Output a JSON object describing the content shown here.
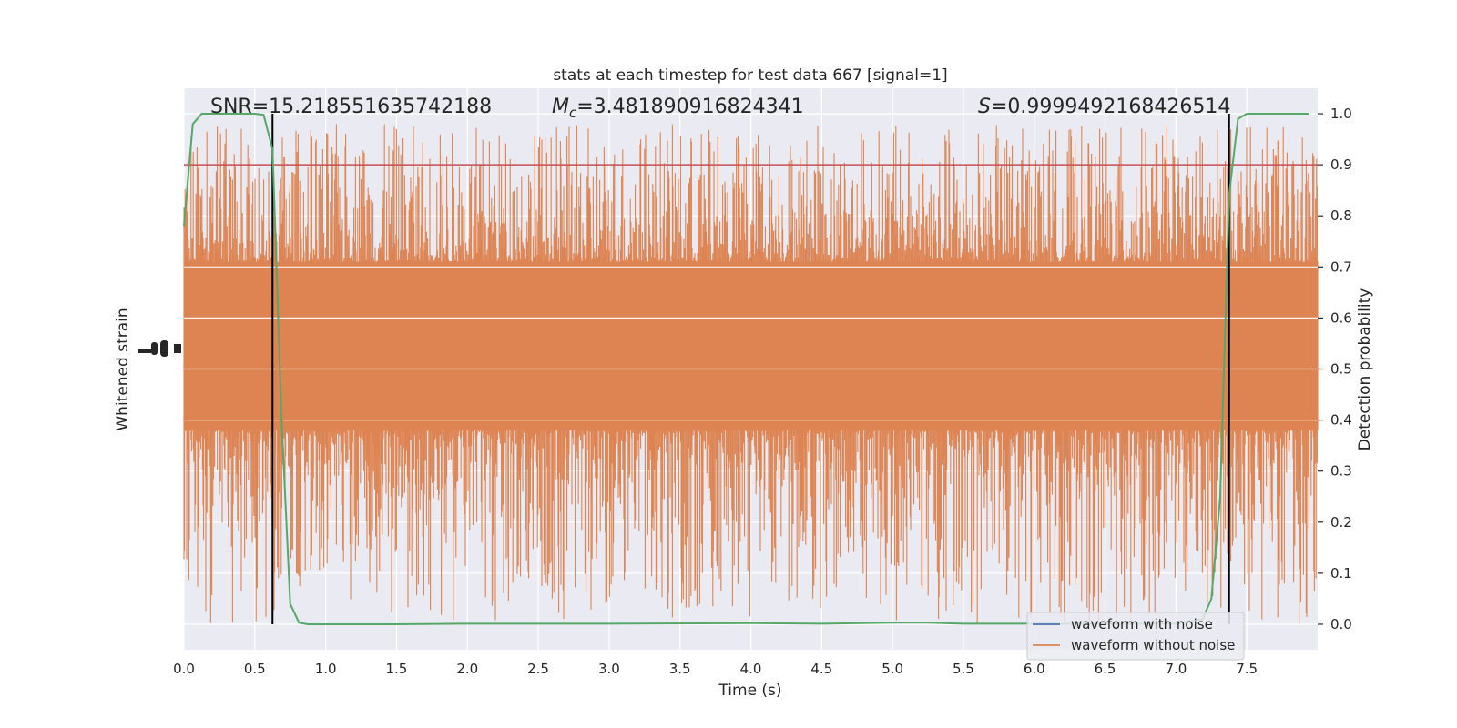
{
  "chart_data": {
    "type": "line",
    "title": "stats at each timestep for test data 667 [signal=1]",
    "xlabel": "Time (s)",
    "ylabel_left": "Whitened strain",
    "ylabel_right": "Detection probability",
    "xlim": [
      0.0,
      8.0
    ],
    "ylim_right": [
      -0.05,
      1.05
    ],
    "x_ticks": [
      "0.0",
      "0.5",
      "1.0",
      "1.5",
      "2.0",
      "2.5",
      "3.0",
      "3.5",
      "4.0",
      "4.5",
      "5.0",
      "5.5",
      "6.0",
      "6.5",
      "7.0",
      "7.5"
    ],
    "y_ticks_right": [
      "0.0",
      "0.1",
      "0.2",
      "0.3",
      "0.4",
      "0.5",
      "0.6",
      "0.7",
      "0.8",
      "0.9",
      "1.0"
    ],
    "grid": true,
    "annotations": {
      "snr": "SNR=15.218551635742188",
      "mc_symbol": "M",
      "mc_sub": "c",
      "mc_value": "=3.481890916824341",
      "s_symbol": "S",
      "s_value": "=0.9999492168426514"
    },
    "threshold": {
      "y": 0.9,
      "color": "#c44e52"
    },
    "vertical_markers_x": [
      0.625,
      7.375
    ],
    "series": [
      {
        "name": "waveform with noise",
        "color": "#4c72b0",
        "band_center": 0.545,
        "band_core_halfwidth": 0.165,
        "spike_max": 0.98,
        "spike_min": 0.0
      },
      {
        "name": "waveform without noise",
        "color": "#dd8452"
      },
      {
        "color": "#55a868",
        "x": [
          0.0,
          0.0625,
          0.125,
          0.25,
          0.375,
          0.5,
          0.5625,
          0.625,
          0.6875,
          0.75,
          0.8125,
          0.875,
          1.0,
          1.5,
          2.0,
          3.0,
          4.0,
          4.5,
          5.0,
          5.25,
          5.5,
          6.0,
          6.5,
          7.0,
          7.1875,
          7.25,
          7.3125,
          7.375,
          7.4375,
          7.5,
          7.5625,
          7.625,
          7.75,
          7.9375
        ],
        "y": [
          0.78,
          0.98,
          1.0,
          1.0,
          1.0,
          1.0,
          0.998,
          0.93,
          0.41,
          0.04,
          0.003,
          0.0,
          0.0,
          0.0,
          0.001,
          0.001,
          0.002,
          0.001,
          0.003,
          0.003,
          0.001,
          0.001,
          0.001,
          0.001,
          0.01,
          0.05,
          0.25,
          0.84,
          0.99,
          1.0,
          1.0,
          1.0,
          1.0,
          1.0
        ]
      }
    ],
    "legend_position": "lower-right"
  }
}
